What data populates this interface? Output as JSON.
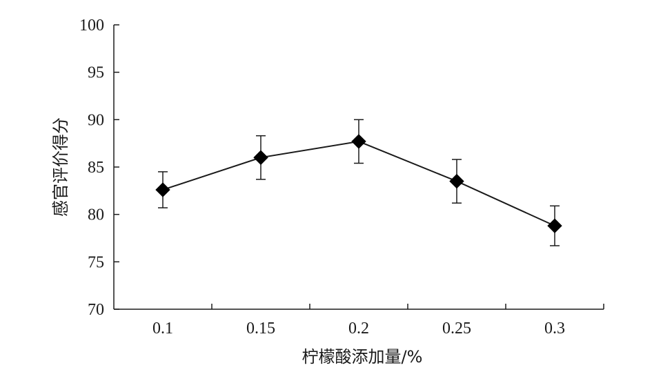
{
  "chart_data": {
    "type": "line",
    "title": "",
    "xlabel": "柠檬酸添加量/%",
    "ylabel": "感官评价得分",
    "categories": [
      "0.1",
      "0.15",
      "0.2",
      "0.25",
      "0.3"
    ],
    "ylim": [
      70,
      100
    ],
    "yticks": [
      "70",
      "75",
      "80",
      "85",
      "90",
      "95",
      "100"
    ],
    "grid": false,
    "legend": "none",
    "marker": "diamond",
    "series": [
      {
        "values": [
          82.6,
          86.0,
          87.7,
          83.5,
          78.8
        ],
        "error": [
          1.9,
          2.3,
          2.3,
          2.3,
          2.1
        ]
      }
    ],
    "colors": {
      "line": "#1a1a1a",
      "marker": "#000000"
    }
  }
}
